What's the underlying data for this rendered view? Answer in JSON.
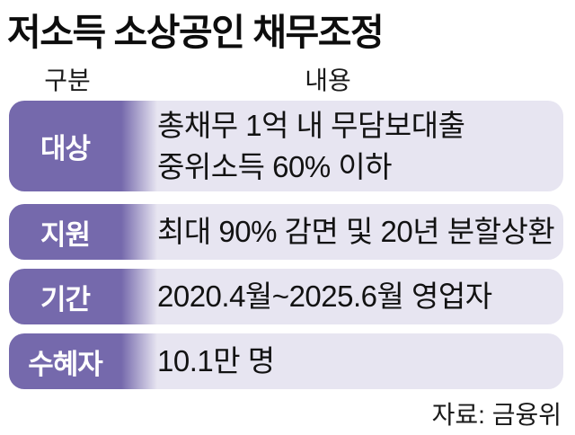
{
  "title": "저소득 소상공인 채무조정",
  "table": {
    "headers": {
      "category": "구분",
      "content": "내용"
    },
    "rows": [
      {
        "label": "대상",
        "lines": [
          "총채무 1억 내 무담보대출",
          "중위소득 60% 이하"
        ]
      },
      {
        "label": "지원",
        "lines": [
          "최대 90% 감면 및 20년 분할상환"
        ]
      },
      {
        "label": "기간",
        "lines": [
          "2020.4월~2025.6월 영업자"
        ]
      },
      {
        "label": "수혜자",
        "lines": [
          "10.1만 명"
        ]
      }
    ]
  },
  "source": "자료: 금융위",
  "colors": {
    "label_purple": "#7569ac",
    "row_lavender": "#e7e5f1",
    "background": "#ffffff"
  }
}
